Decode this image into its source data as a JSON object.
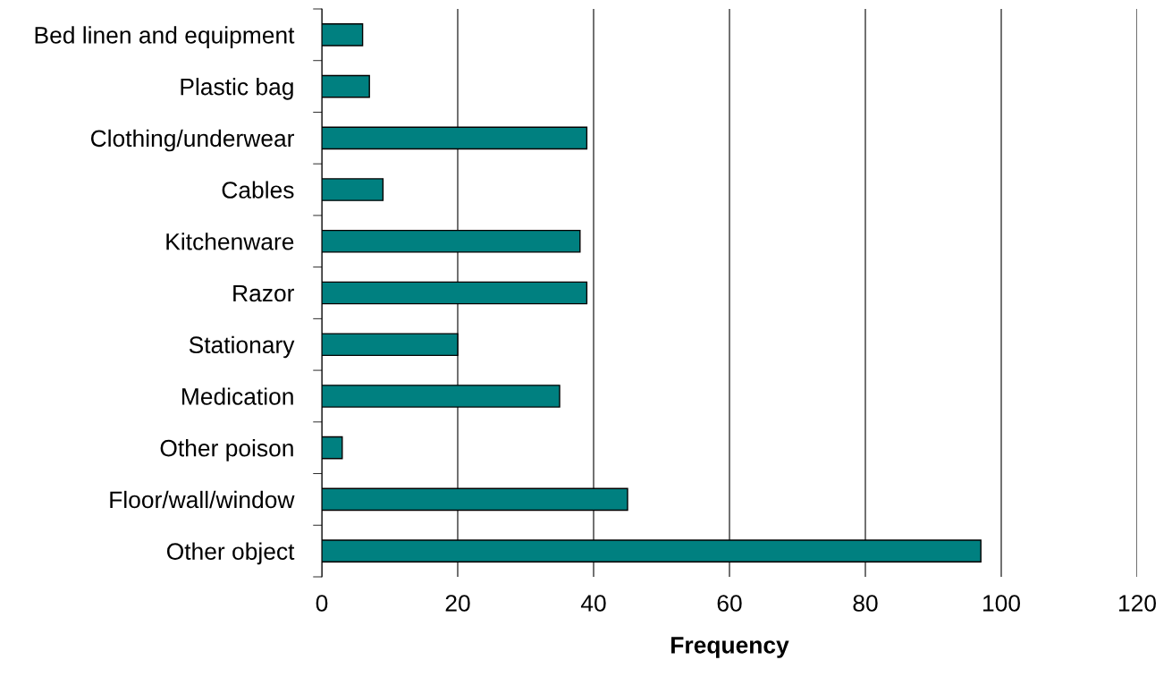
{
  "chart_data": {
    "type": "bar",
    "orientation": "horizontal",
    "xlabel": "Frequency",
    "categories": [
      "Bed linen and equipment",
      "Plastic bag",
      "Clothing/underwear",
      "Cables",
      "Kitchenware",
      "Razor",
      "Stationary",
      "Medication",
      "Other poison",
      "Floor/wall/window",
      "Other object"
    ],
    "values": [
      6,
      7,
      39,
      9,
      38,
      39,
      20,
      35,
      3,
      45,
      97
    ],
    "color": "#008080",
    "xlim": [
      0,
      120
    ],
    "xticks": [
      0,
      20,
      40,
      60,
      80,
      100,
      120
    ],
    "grid": "x",
    "legend": false
  }
}
